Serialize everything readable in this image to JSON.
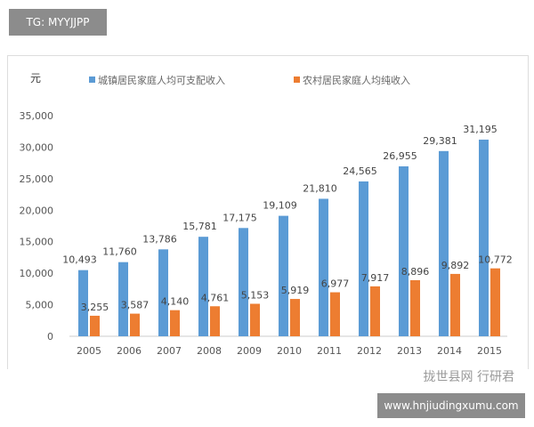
{
  "badges": {
    "top_left": "TG: MYYJJPP",
    "bottom_right": "www.hnjiudingxumu.com"
  },
  "watermark": "拢世县网 行研君",
  "chart_data": {
    "type": "bar",
    "ylabel": "元",
    "categories": [
      "2005",
      "2006",
      "2007",
      "2008",
      "2009",
      "2010",
      "2011",
      "2012",
      "2013",
      "2014",
      "2015"
    ],
    "series": [
      {
        "name": "城镇居民家庭人均可支配收入",
        "color": "#5b9bd5",
        "values": [
          10493,
          11760,
          13786,
          15781,
          17175,
          19109,
          21810,
          24565,
          26955,
          29381,
          31195
        ]
      },
      {
        "name": "农村居民家庭人均纯收入",
        "color": "#ed7d31",
        "values": [
          3255,
          3587,
          4140,
          4761,
          5153,
          5919,
          6977,
          7917,
          8896,
          9892,
          10772
        ]
      }
    ],
    "yticks": [
      "0",
      "5,000",
      "10,000",
      "15,000",
      "20,000",
      "25,000",
      "30,000",
      "35,000"
    ],
    "ylim": [
      0,
      35000
    ],
    "grid": false,
    "legend": "top",
    "data_labels": true
  }
}
